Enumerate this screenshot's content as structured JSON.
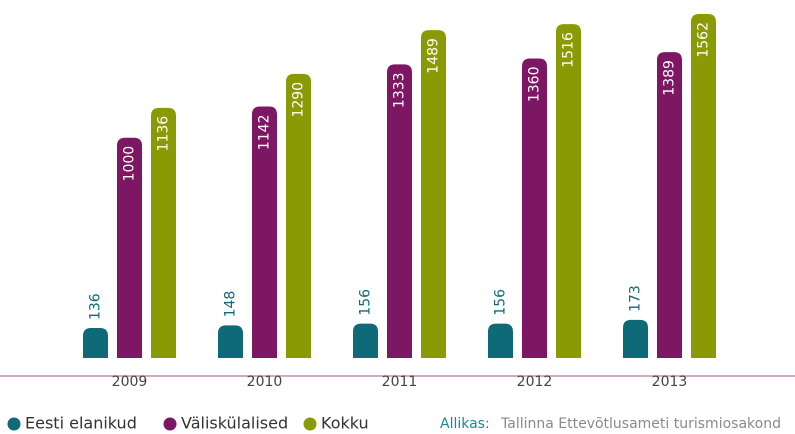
{
  "chart_data": {
    "type": "bar",
    "categories": [
      "2009",
      "2010",
      "2011",
      "2012",
      "2013"
    ],
    "series": [
      {
        "name": "Eesti elanikud",
        "color": "#0f6a77",
        "values": [
          136,
          148,
          156,
          156,
          173
        ]
      },
      {
        "name": "Väliskülalised",
        "color": "#7e1763",
        "values": [
          1000,
          1142,
          1333,
          1360,
          1389
        ]
      },
      {
        "name": "Kokku",
        "color": "#8a9a05",
        "values": [
          1136,
          1290,
          1489,
          1516,
          1562
        ]
      }
    ],
    "source_label": "Allikas:",
    "source": "Tallinna Ettevõtlusameti turismiosakond"
  }
}
